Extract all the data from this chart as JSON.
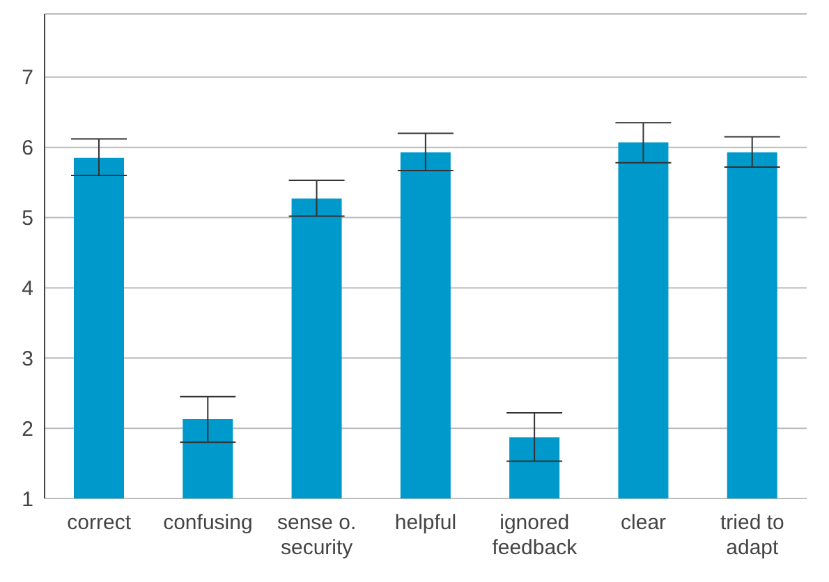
{
  "chart_data": {
    "type": "bar",
    "categories": [
      "correct",
      "confusing",
      "sense o. security",
      "helpful",
      "ignored feedback",
      "clear",
      "tried to adapt"
    ],
    "values": [
      5.85,
      2.13,
      5.27,
      5.93,
      1.87,
      6.07,
      5.93
    ],
    "errors": [
      [
        5.6,
        6.12
      ],
      [
        1.8,
        2.45
      ],
      [
        5.02,
        5.53
      ],
      [
        5.67,
        6.2
      ],
      [
        1.53,
        2.22
      ],
      [
        5.78,
        6.35
      ],
      [
        5.72,
        6.15
      ]
    ],
    "color": "#0099cc",
    "ylim": [
      1,
      7.9
    ],
    "yticks": [
      1,
      2,
      3,
      4,
      5,
      6,
      7
    ],
    "grid": "y"
  }
}
